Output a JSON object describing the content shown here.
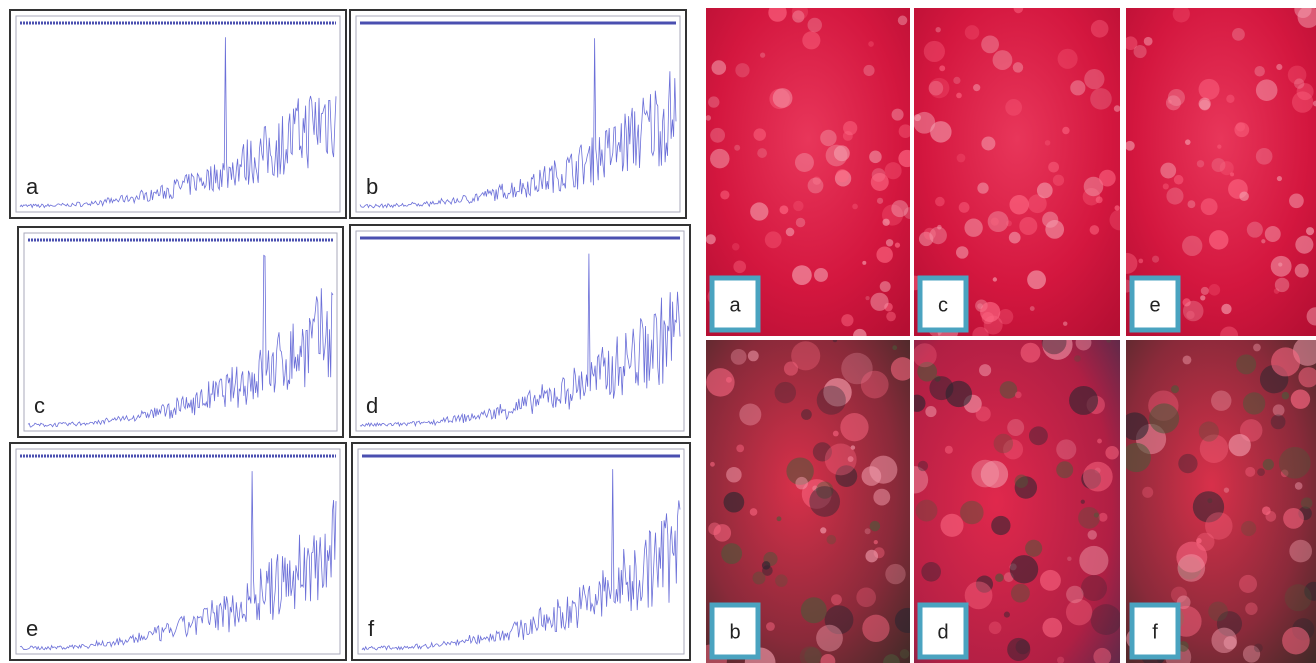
{
  "spectra": [
    {
      "label": "a"
    },
    {
      "label": "b"
    },
    {
      "label": "c"
    },
    {
      "label": "d"
    },
    {
      "label": "e"
    },
    {
      "label": "f"
    }
  ],
  "micrographs": [
    {
      "label": "a"
    },
    {
      "label": "c"
    },
    {
      "label": "e"
    },
    {
      "label": "b"
    },
    {
      "label": "d"
    },
    {
      "label": "f"
    }
  ]
}
